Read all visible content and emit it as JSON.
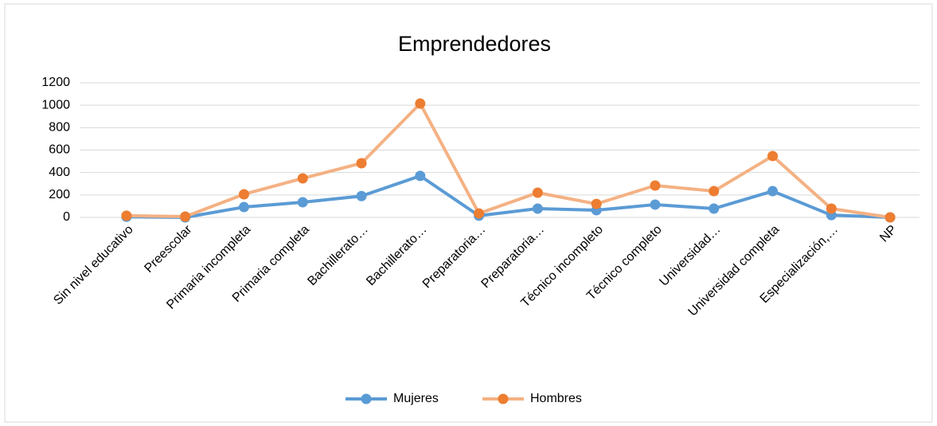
{
  "chart_data": {
    "type": "line",
    "title": "Emprendedores",
    "categories": [
      "Sin nivel educativo",
      "Preescolar",
      "Primaria incompleta",
      "Primaria completa",
      "Bachillerato…",
      "Bachillerato…",
      "Preparatoria…",
      "Preparatoria…",
      "Técnico incompleto",
      "Técnico completo",
      "Universidad…",
      "Universidad completa",
      "Especialización,…",
      "NP"
    ],
    "series": [
      {
        "name": "Mujeres",
        "color": "#5b9bd5",
        "values": [
          5,
          0,
          92,
          135,
          190,
          370,
          15,
          78,
          64,
          114,
          78,
          234,
          20,
          0
        ]
      },
      {
        "name": "Hombres",
        "color": "#f4b183",
        "marker_color": "#ed7d31",
        "values": [
          15,
          7,
          206,
          348,
          483,
          1015,
          35,
          220,
          120,
          284,
          234,
          547,
          78,
          0
        ]
      }
    ],
    "ylim": [
      0,
      1200
    ],
    "yticks": [
      0,
      200,
      400,
      600,
      800,
      1000,
      1200
    ],
    "grid": true,
    "legend": "bottom"
  }
}
